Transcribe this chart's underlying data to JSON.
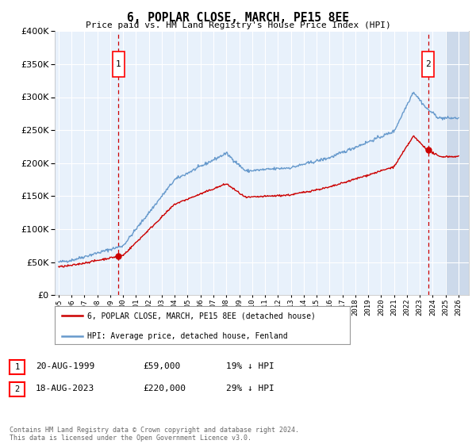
{
  "title": "6, POPLAR CLOSE, MARCH, PE15 8EE",
  "subtitle": "Price paid vs. HM Land Registry's House Price Index (HPI)",
  "ylim": [
    0,
    400000
  ],
  "yticks": [
    0,
    50000,
    100000,
    150000,
    200000,
    250000,
    300000,
    350000,
    400000
  ],
  "sale1_date": 1999.64,
  "sale1_price": 59000,
  "sale2_date": 2023.64,
  "sale2_price": 220000,
  "line1_label": "6, POPLAR CLOSE, MARCH, PE15 8EE (detached house)",
  "line2_label": "HPI: Average price, detached house, Fenland",
  "annotation1": "20-AUG-1999",
  "annotation1_price": "£59,000",
  "annotation1_hpi": "19% ↓ HPI",
  "annotation2": "18-AUG-2023",
  "annotation2_price": "£220,000",
  "annotation2_hpi": "29% ↓ HPI",
  "footer": "Contains HM Land Registry data © Crown copyright and database right 2024.\nThis data is licensed under the Open Government Licence v3.0.",
  "plot_bg": "#e8f1fb",
  "hatch_color": "#ccd9ea",
  "red_line_color": "#cc0000",
  "blue_line_color": "#6699cc"
}
